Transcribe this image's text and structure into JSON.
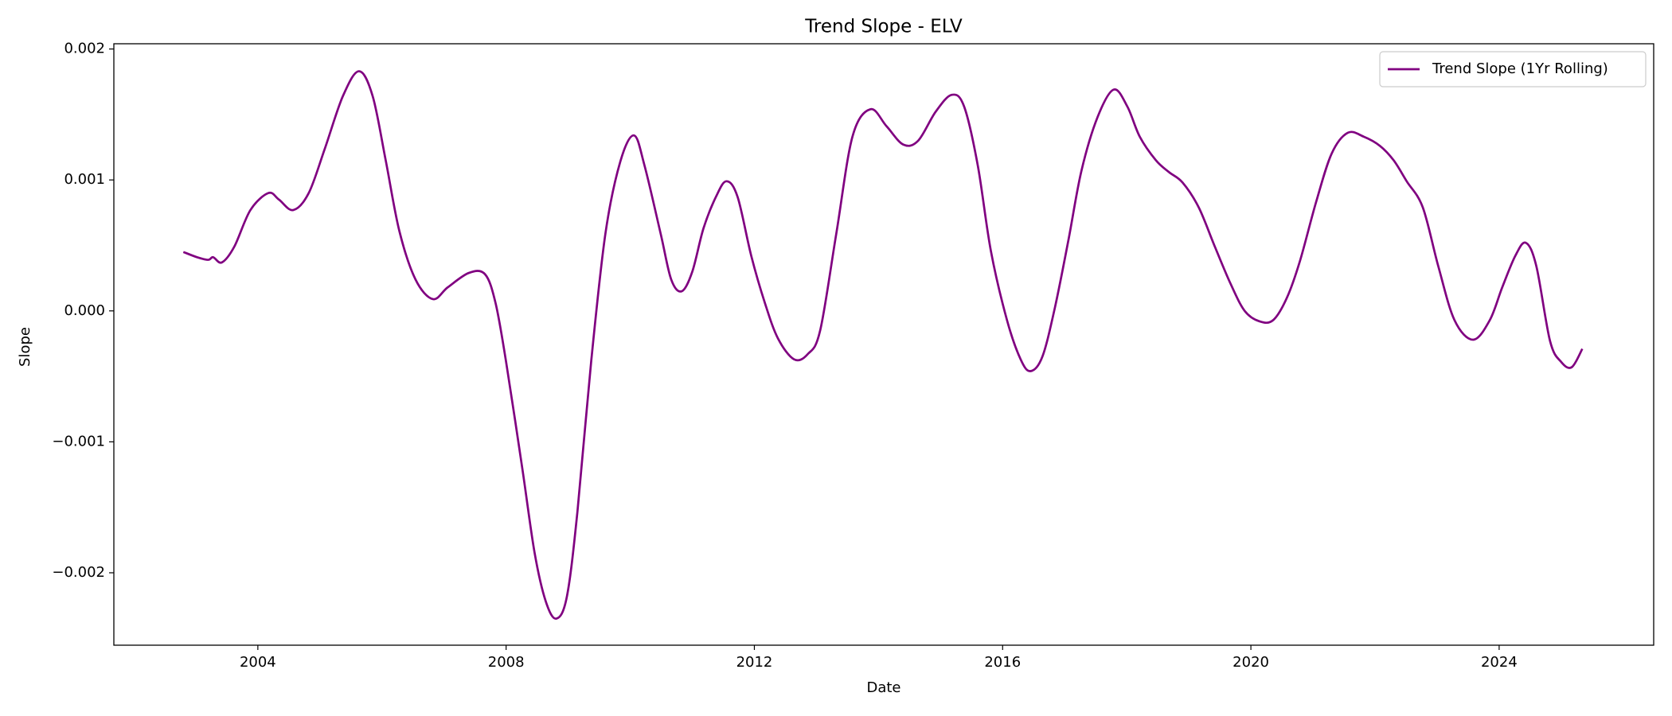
{
  "chart_data": {
    "type": "line",
    "title": "Trend Slope - ELV",
    "xlabel": "Date",
    "ylabel": "Slope",
    "x": [
      2002.8,
      2003.02,
      2003.2,
      2003.28,
      2003.42,
      2003.62,
      2003.88,
      2004.17,
      2004.34,
      2004.57,
      2004.82,
      2005.08,
      2005.37,
      2005.63,
      2005.85,
      2006.06,
      2006.28,
      2006.54,
      2006.82,
      2007.06,
      2007.4,
      2007.66,
      2007.83,
      2008.0,
      2008.26,
      2008.46,
      2008.64,
      2008.81,
      2008.98,
      2009.15,
      2009.37,
      2009.6,
      2009.84,
      2010.06,
      2010.23,
      2010.49,
      2010.66,
      2010.83,
      2011.0,
      2011.18,
      2011.38,
      2011.55,
      2011.73,
      2011.95,
      2012.17,
      2012.38,
      2012.64,
      2012.86,
      2013.06,
      2013.32,
      2013.58,
      2013.87,
      2014.13,
      2014.4,
      2014.64,
      2014.92,
      2015.18,
      2015.38,
      2015.6,
      2015.81,
      2016.07,
      2016.29,
      2016.45,
      2016.64,
      2016.84,
      2017.06,
      2017.27,
      2017.53,
      2017.79,
      2018.01,
      2018.21,
      2018.47,
      2018.68,
      2018.9,
      2019.16,
      2019.42,
      2019.67,
      2019.9,
      2020.14,
      2020.36,
      2020.58,
      2020.79,
      2021.05,
      2021.3,
      2021.56,
      2021.82,
      2022.08,
      2022.3,
      2022.51,
      2022.77,
      2023.02,
      2023.28,
      2023.58,
      2023.85,
      2024.05,
      2024.26,
      2024.43,
      2024.6,
      2024.82,
      2025.0,
      2025.17,
      2025.34
    ],
    "series": [
      {
        "name": "Trend Slope (1Yr Rolling)",
        "color": "#800080",
        "values": [
          0.00045,
          0.00041,
          0.00039,
          0.00041,
          0.00037,
          0.00049,
          0.00077,
          0.0009,
          0.00085,
          0.00077,
          0.0009,
          0.00124,
          0.00164,
          0.00183,
          0.00164,
          0.00115,
          0.00061,
          0.00024,
          9e-05,
          0.00018,
          0.00029,
          0.00028,
          6e-05,
          -0.00039,
          -0.0012,
          -0.00185,
          -0.00222,
          -0.00235,
          -0.00218,
          -0.00153,
          -0.00039,
          0.00059,
          0.00114,
          0.00134,
          0.00111,
          0.00059,
          0.00024,
          0.00015,
          0.0003,
          0.00063,
          0.00087,
          0.00099,
          0.00087,
          0.00042,
          6e-05,
          -0.00021,
          -0.00037,
          -0.00033,
          -0.00015,
          0.00059,
          0.00133,
          0.00154,
          0.00141,
          0.00127,
          0.0013,
          0.00152,
          0.00165,
          0.00156,
          0.00111,
          0.00046,
          -7e-05,
          -0.00037,
          -0.00046,
          -0.00035,
          2e-05,
          0.00054,
          0.00107,
          0.00148,
          0.00169,
          0.00156,
          0.00133,
          0.00115,
          0.00106,
          0.00098,
          0.00079,
          0.00049,
          0.00021,
          0.0,
          -8e-05,
          -7e-05,
          0.0001,
          0.00038,
          0.00083,
          0.0012,
          0.00136,
          0.00133,
          0.00126,
          0.00115,
          0.00099,
          0.00079,
          0.00034,
          -7e-05,
          -0.00022,
          -7e-05,
          0.00018,
          0.00042,
          0.00052,
          0.00034,
          -0.00023,
          -0.00039,
          -0.00043,
          -0.00029
        ]
      }
    ],
    "xlim": [
      2001.68,
      2026.49
    ],
    "xticks": [
      2004,
      2008,
      2012,
      2016,
      2020,
      2024
    ],
    "ylim": [
      -0.002553,
      0.00204
    ],
    "yticks": [
      {
        "value": -0.002,
        "label": "−0.002"
      },
      {
        "value": -0.001,
        "label": "−0.001"
      },
      {
        "value": 0,
        "label": "0.000"
      },
      0.001,
      0.002
    ],
    "grid": false,
    "legend": "upper right"
  }
}
